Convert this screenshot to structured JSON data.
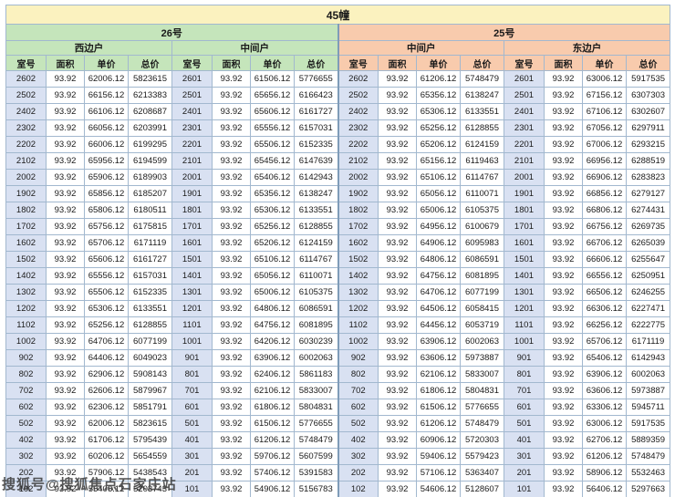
{
  "watermark": "搜狐号@搜狐焦点石家庄站",
  "colors": {
    "titleyellow": "#fbf2bf",
    "green": "#c5e5bb",
    "peach": "#f8cbad",
    "roomblue": "#d9e1f2",
    "border": "#a2b8cf",
    "borderdark": "#7f9cb8",
    "text": "#1a1a1a",
    "watermark": "#3a3a3a"
  },
  "chart_data": {
    "type": "table",
    "title": "45幢",
    "sections": [
      {
        "label": "26号",
        "units": [
          "西边户",
          "中间户"
        ]
      },
      {
        "label": "25号",
        "units": [
          "中间户",
          "东边户"
        ]
      }
    ],
    "column_headers": [
      "室号",
      "面积",
      "单价",
      "总价"
    ],
    "rows": [
      [
        "2602",
        "93.92",
        "62006.12",
        "5823615",
        "2601",
        "93.92",
        "61506.12",
        "5776655",
        "2602",
        "93.92",
        "61206.12",
        "5748479",
        "2601",
        "93.92",
        "63006.12",
        "5917535"
      ],
      [
        "2502",
        "93.92",
        "66156.12",
        "6213383",
        "2501",
        "93.92",
        "65656.12",
        "6166423",
        "2502",
        "93.92",
        "65356.12",
        "6138247",
        "2501",
        "93.92",
        "67156.12",
        "6307303"
      ],
      [
        "2402",
        "93.92",
        "66106.12",
        "6208687",
        "2401",
        "93.92",
        "65606.12",
        "6161727",
        "2402",
        "93.92",
        "65306.12",
        "6133551",
        "2401",
        "93.92",
        "67106.12",
        "6302607"
      ],
      [
        "2302",
        "93.92",
        "66056.12",
        "6203991",
        "2301",
        "93.92",
        "65556.12",
        "6157031",
        "2302",
        "93.92",
        "65256.12",
        "6128855",
        "2301",
        "93.92",
        "67056.12",
        "6297911"
      ],
      [
        "2202",
        "93.92",
        "66006.12",
        "6199295",
        "2201",
        "93.92",
        "65506.12",
        "6152335",
        "2202",
        "93.92",
        "65206.12",
        "6124159",
        "2201",
        "93.92",
        "67006.12",
        "6293215"
      ],
      [
        "2102",
        "93.92",
        "65956.12",
        "6194599",
        "2101",
        "93.92",
        "65456.12",
        "6147639",
        "2102",
        "93.92",
        "65156.12",
        "6119463",
        "2101",
        "93.92",
        "66956.12",
        "6288519"
      ],
      [
        "2002",
        "93.92",
        "65906.12",
        "6189903",
        "2001",
        "93.92",
        "65406.12",
        "6142943",
        "2002",
        "93.92",
        "65106.12",
        "6114767",
        "2001",
        "93.92",
        "66906.12",
        "6283823"
      ],
      [
        "1902",
        "93.92",
        "65856.12",
        "6185207",
        "1901",
        "93.92",
        "65356.12",
        "6138247",
        "1902",
        "93.92",
        "65056.12",
        "6110071",
        "1901",
        "93.92",
        "66856.12",
        "6279127"
      ],
      [
        "1802",
        "93.92",
        "65806.12",
        "6180511",
        "1801",
        "93.92",
        "65306.12",
        "6133551",
        "1802",
        "93.92",
        "65006.12",
        "6105375",
        "1801",
        "93.92",
        "66806.12",
        "6274431"
      ],
      [
        "1702",
        "93.92",
        "65756.12",
        "6175815",
        "1701",
        "93.92",
        "65256.12",
        "6128855",
        "1702",
        "93.92",
        "64956.12",
        "6100679",
        "1701",
        "93.92",
        "66756.12",
        "6269735"
      ],
      [
        "1602",
        "93.92",
        "65706.12",
        "6171119",
        "1601",
        "93.92",
        "65206.12",
        "6124159",
        "1602",
        "93.92",
        "64906.12",
        "6095983",
        "1601",
        "93.92",
        "66706.12",
        "6265039"
      ],
      [
        "1502",
        "93.92",
        "65606.12",
        "6161727",
        "1501",
        "93.92",
        "65106.12",
        "6114767",
        "1502",
        "93.92",
        "64806.12",
        "6086591",
        "1501",
        "93.92",
        "66606.12",
        "6255647"
      ],
      [
        "1402",
        "93.92",
        "65556.12",
        "6157031",
        "1401",
        "93.92",
        "65056.12",
        "6110071",
        "1402",
        "93.92",
        "64756.12",
        "6081895",
        "1401",
        "93.92",
        "66556.12",
        "6250951"
      ],
      [
        "1302",
        "93.92",
        "65506.12",
        "6152335",
        "1301",
        "93.92",
        "65006.12",
        "6105375",
        "1302",
        "93.92",
        "64706.12",
        "6077199",
        "1301",
        "93.92",
        "66506.12",
        "6246255"
      ],
      [
        "1202",
        "93.92",
        "65306.12",
        "6133551",
        "1201",
        "93.92",
        "64806.12",
        "6086591",
        "1202",
        "93.92",
        "64506.12",
        "6058415",
        "1201",
        "93.92",
        "66306.12",
        "6227471"
      ],
      [
        "1102",
        "93.92",
        "65256.12",
        "6128855",
        "1101",
        "93.92",
        "64756.12",
        "6081895",
        "1102",
        "93.92",
        "64456.12",
        "6053719",
        "1101",
        "93.92",
        "66256.12",
        "6222775"
      ],
      [
        "1002",
        "93.92",
        "64706.12",
        "6077199",
        "1001",
        "93.92",
        "64206.12",
        "6030239",
        "1002",
        "93.92",
        "63906.12",
        "6002063",
        "1001",
        "93.92",
        "65706.12",
        "6171119"
      ],
      [
        "902",
        "93.92",
        "64406.12",
        "6049023",
        "901",
        "93.92",
        "63906.12",
        "6002063",
        "902",
        "93.92",
        "63606.12",
        "5973887",
        "901",
        "93.92",
        "65406.12",
        "6142943"
      ],
      [
        "802",
        "93.92",
        "62906.12",
        "5908143",
        "801",
        "93.92",
        "62406.12",
        "5861183",
        "802",
        "93.92",
        "62106.12",
        "5833007",
        "801",
        "93.92",
        "63906.12",
        "6002063"
      ],
      [
        "702",
        "93.92",
        "62606.12",
        "5879967",
        "701",
        "93.92",
        "62106.12",
        "5833007",
        "702",
        "93.92",
        "61806.12",
        "5804831",
        "701",
        "93.92",
        "63606.12",
        "5973887"
      ],
      [
        "602",
        "93.92",
        "62306.12",
        "5851791",
        "601",
        "93.92",
        "61806.12",
        "5804831",
        "602",
        "93.92",
        "61506.12",
        "5776655",
        "601",
        "93.92",
        "63306.12",
        "5945711"
      ],
      [
        "502",
        "93.92",
        "62006.12",
        "5823615",
        "501",
        "93.92",
        "61506.12",
        "5776655",
        "502",
        "93.92",
        "61206.12",
        "5748479",
        "501",
        "93.92",
        "63006.12",
        "5917535"
      ],
      [
        "402",
        "93.92",
        "61706.12",
        "5795439",
        "401",
        "93.92",
        "61206.12",
        "5748479",
        "402",
        "93.92",
        "60906.12",
        "5720303",
        "401",
        "93.92",
        "62706.12",
        "5889359"
      ],
      [
        "302",
        "93.92",
        "60206.12",
        "5654559",
        "301",
        "93.92",
        "59706.12",
        "5607599",
        "302",
        "93.92",
        "59406.12",
        "5579423",
        "301",
        "93.92",
        "61206.12",
        "5748479"
      ],
      [
        "202",
        "93.92",
        "57906.12",
        "5438543",
        "201",
        "93.92",
        "57406.12",
        "5391583",
        "202",
        "93.92",
        "57106.12",
        "5363407",
        "201",
        "93.92",
        "58906.12",
        "5532463"
      ],
      [
        "102",
        "93.92",
        "55406.12",
        "5203743",
        "101",
        "93.92",
        "54906.12",
        "5156783",
        "102",
        "93.92",
        "54606.12",
        "5128607",
        "101",
        "93.92",
        "56406.12",
        "5297663"
      ]
    ]
  }
}
